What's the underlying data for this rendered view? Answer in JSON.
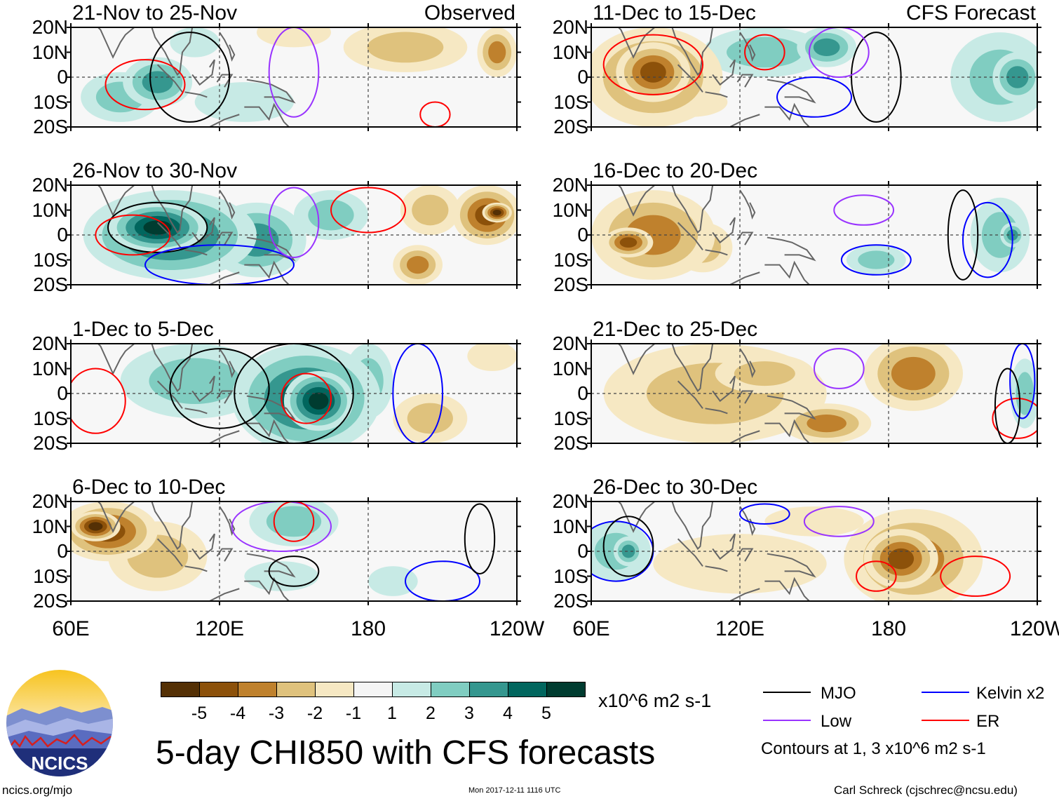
{
  "chart_data": {
    "type": "heatmap",
    "title": "5-day CHI850 with CFS forecasts",
    "units": "x10^6 m2 s-1",
    "variable": "CHI850",
    "yticks": [
      "20N",
      "10N",
      "0",
      "10S",
      "20S"
    ],
    "xticks": [
      "60E",
      "120E",
      "180",
      "120W"
    ],
    "lon_range": [
      60,
      240
    ],
    "lat_range": [
      -20,
      20
    ],
    "observed_label": "Observed",
    "forecast_label": "CFS Forecast",
    "colorbar": {
      "levels": [
        "-5",
        "-4",
        "-3",
        "-2",
        "-1",
        "1",
        "2",
        "3",
        "4",
        "5"
      ],
      "colors": [
        "#543005",
        "#8c510a",
        "#bf812d",
        "#dfc27d",
        "#f6e8c3",
        "#f5f5f5",
        "#c7eae5",
        "#80cdc1",
        "#35978f",
        "#01665e",
        "#003c30"
      ]
    },
    "panels": [
      {
        "title": "21-Nov to 25-Nov",
        "group": "observed",
        "blobs": [
          [
            80,
            -8,
            16,
            10,
            2
          ],
          [
            95,
            -2,
            14,
            10,
            3
          ],
          [
            130,
            -10,
            20,
            8,
            1
          ],
          [
            150,
            18,
            15,
            6,
            -1
          ],
          [
            195,
            12,
            25,
            10,
            -2
          ],
          [
            232,
            10,
            8,
            10,
            -3
          ],
          [
            110,
            14,
            10,
            6,
            1
          ]
        ],
        "contours": [
          {
            "kind": "ER",
            "c": [
              90,
              -3,
              16,
              10
            ]
          },
          {
            "kind": "MJO",
            "c": [
              108,
              0,
              16,
              18
            ]
          },
          {
            "kind": "ER",
            "c": [
              207,
              -15,
              6,
              5
            ]
          },
          {
            "kind": "Low",
            "c": [
              150,
              2,
              10,
              18
            ]
          }
        ]
      },
      {
        "title": "26-Nov to 30-Nov",
        "group": "observed",
        "blobs": [
          [
            100,
            0,
            35,
            18,
            4
          ],
          [
            95,
            3,
            20,
            10,
            5
          ],
          [
            135,
            -2,
            20,
            15,
            3
          ],
          [
            165,
            8,
            15,
            10,
            2
          ],
          [
            205,
            10,
            12,
            10,
            -2
          ],
          [
            228,
            8,
            14,
            12,
            -4
          ],
          [
            232,
            9,
            6,
            4,
            -5
          ],
          [
            200,
            -12,
            10,
            8,
            -3
          ]
        ],
        "contours": [
          {
            "kind": "MJO",
            "c": [
              95,
              3,
              20,
              10
            ]
          },
          {
            "kind": "ER",
            "c": [
              85,
              0,
              15,
              8
            ]
          },
          {
            "kind": "ER",
            "c": [
              180,
              10,
              15,
              9
            ]
          },
          {
            "kind": "Kelvin",
            "c": [
              120,
              -12,
              30,
              8
            ]
          },
          {
            "kind": "Low",
            "c": [
              150,
              5,
              10,
              14
            ]
          }
        ]
      },
      {
        "title": "1-Dec to 5-Dec",
        "group": "observed",
        "blobs": [
          [
            155,
            -2,
            30,
            22,
            4
          ],
          [
            160,
            -3,
            14,
            12,
            5
          ],
          [
            110,
            5,
            30,
            15,
            2
          ],
          [
            180,
            5,
            10,
            15,
            2
          ],
          [
            205,
            -10,
            15,
            10,
            -2
          ],
          [
            230,
            15,
            10,
            6,
            -1
          ]
        ],
        "contours": [
          {
            "kind": "MJO",
            "c": [
              150,
              0,
              24,
              20
            ]
          },
          {
            "kind": "ER",
            "c": [
              155,
              -2,
              10,
              10
            ]
          },
          {
            "kind": "ER",
            "c": [
              70,
              -3,
              12,
              13
            ]
          },
          {
            "kind": "Kelvin",
            "c": [
              200,
              0,
              10,
              20
            ]
          },
          {
            "kind": "MJO",
            "c": [
              120,
              2,
              20,
              16
            ]
          }
        ]
      },
      {
        "title": "6-Dec to 10-Dec",
        "group": "observed",
        "blobs": [
          [
            75,
            8,
            20,
            12,
            -4
          ],
          [
            70,
            10,
            10,
            6,
            -5
          ],
          [
            95,
            -2,
            20,
            14,
            -2
          ],
          [
            150,
            12,
            18,
            10,
            2
          ],
          [
            145,
            -10,
            15,
            6,
            1
          ],
          [
            190,
            -12,
            10,
            6,
            1
          ]
        ],
        "contours": [
          {
            "kind": "MJO",
            "c": [
              150,
              -8,
              10,
              6
            ]
          },
          {
            "kind": "Low",
            "c": [
              145,
              10,
              20,
              10
            ]
          },
          {
            "kind": "ER",
            "c": [
              150,
              12,
              8,
              8
            ]
          },
          {
            "kind": "Kelvin",
            "c": [
              210,
              -12,
              15,
              8
            ]
          },
          {
            "kind": "MJO",
            "c": [
              225,
              5,
              6,
              14
            ]
          }
        ]
      },
      {
        "title": "11-Dec to 15-Dec",
        "group": "forecast",
        "blobs": [
          [
            85,
            0,
            28,
            20,
            -3
          ],
          [
            85,
            2,
            15,
            12,
            -4
          ],
          [
            130,
            10,
            25,
            10,
            2
          ],
          [
            155,
            12,
            12,
            8,
            3
          ],
          [
            225,
            0,
            20,
            18,
            2
          ],
          [
            232,
            0,
            10,
            10,
            3
          ],
          [
            100,
            -10,
            15,
            6,
            -1
          ]
        ],
        "contours": [
          {
            "kind": "ER",
            "c": [
              85,
              5,
              20,
              12
            ]
          },
          {
            "kind": "ER",
            "c": [
              130,
              10,
              8,
              7
            ]
          },
          {
            "kind": "Kelvin",
            "c": [
              150,
              -8,
              15,
              8
            ]
          },
          {
            "kind": "MJO",
            "c": [
              175,
              0,
              10,
              18
            ]
          },
          {
            "kind": "Low",
            "c": [
              160,
              10,
              12,
              10
            ]
          }
        ]
      },
      {
        "title": "16-Dec to 20-Dec",
        "group": "forecast",
        "blobs": [
          [
            85,
            0,
            25,
            18,
            -3
          ],
          [
            75,
            -3,
            10,
            6,
            -4
          ],
          [
            105,
            -5,
            12,
            10,
            -2
          ],
          [
            175,
            -10,
            12,
            6,
            2
          ],
          [
            225,
            0,
            12,
            15,
            2
          ],
          [
            230,
            0,
            5,
            5,
            3
          ]
        ],
        "contours": [
          {
            "kind": "Low",
            "c": [
              170,
              10,
              12,
              6
            ]
          },
          {
            "kind": "Kelvin",
            "c": [
              175,
              -10,
              14,
              6
            ]
          },
          {
            "kind": "Kelvin",
            "c": [
              220,
              -2,
              10,
              15
            ]
          },
          {
            "kind": "MJO",
            "c": [
              210,
              0,
              6,
              18
            ]
          }
        ]
      },
      {
        "title": "21-Dec to 25-Dec",
        "group": "forecast",
        "blobs": [
          [
            110,
            0,
            45,
            20,
            -2
          ],
          [
            190,
            8,
            20,
            15,
            -3
          ],
          [
            155,
            -12,
            18,
            8,
            -3
          ],
          [
            130,
            8,
            20,
            8,
            -2
          ],
          [
            235,
            0,
            6,
            14,
            2
          ]
        ],
        "contours": [
          {
            "kind": "Low",
            "c": [
              160,
              10,
              10,
              8
            ]
          },
          {
            "kind": "ER",
            "c": [
              232,
              -10,
              10,
              8
            ]
          },
          {
            "kind": "Kelvin",
            "c": [
              234,
              5,
              5,
              15
            ]
          },
          {
            "kind": "MJO",
            "c": [
              228,
              -5,
              5,
              15
            ]
          }
        ]
      },
      {
        "title": "26-Dec to 30-Dec",
        "group": "forecast",
        "blobs": [
          [
            190,
            -3,
            28,
            20,
            -3
          ],
          [
            185,
            -3,
            15,
            12,
            -4
          ],
          [
            120,
            -5,
            35,
            12,
            -1
          ],
          [
            70,
            0,
            14,
            12,
            2
          ],
          [
            75,
            0,
            6,
            6,
            3
          ],
          [
            150,
            12,
            20,
            6,
            -1
          ]
        ],
        "contours": [
          {
            "kind": "Kelvin",
            "c": [
              70,
              0,
              15,
              12
            ]
          },
          {
            "kind": "MJO",
            "c": [
              75,
              2,
              10,
              12
            ]
          },
          {
            "kind": "ER",
            "c": [
              175,
              -10,
              8,
              6
            ]
          },
          {
            "kind": "ER",
            "c": [
              215,
              -10,
              14,
              8
            ]
          },
          {
            "kind": "Low",
            "c": [
              160,
              12,
              14,
              6
            ]
          },
          {
            "kind": "Kelvin",
            "c": [
              130,
              15,
              10,
              4
            ]
          }
        ]
      }
    ]
  },
  "legend": {
    "mjo": "MJO",
    "kelvin": "Kelvin x2",
    "low": "Low",
    "er": "ER",
    "contours_note": "Contours at 1, 3 x10^6 m2 s-1",
    "colors": {
      "mjo": "#000000",
      "kelvin": "#0000ff",
      "low": "#9933ff",
      "er": "#ff0000"
    }
  },
  "footer": {
    "logo_text": "NCICS",
    "url": "ncics.org/mjo",
    "timestamp": "Mon 2017-12-11 1116 UTC",
    "credit": "Carl Schreck (cjschrec@ncsu.edu)"
  }
}
